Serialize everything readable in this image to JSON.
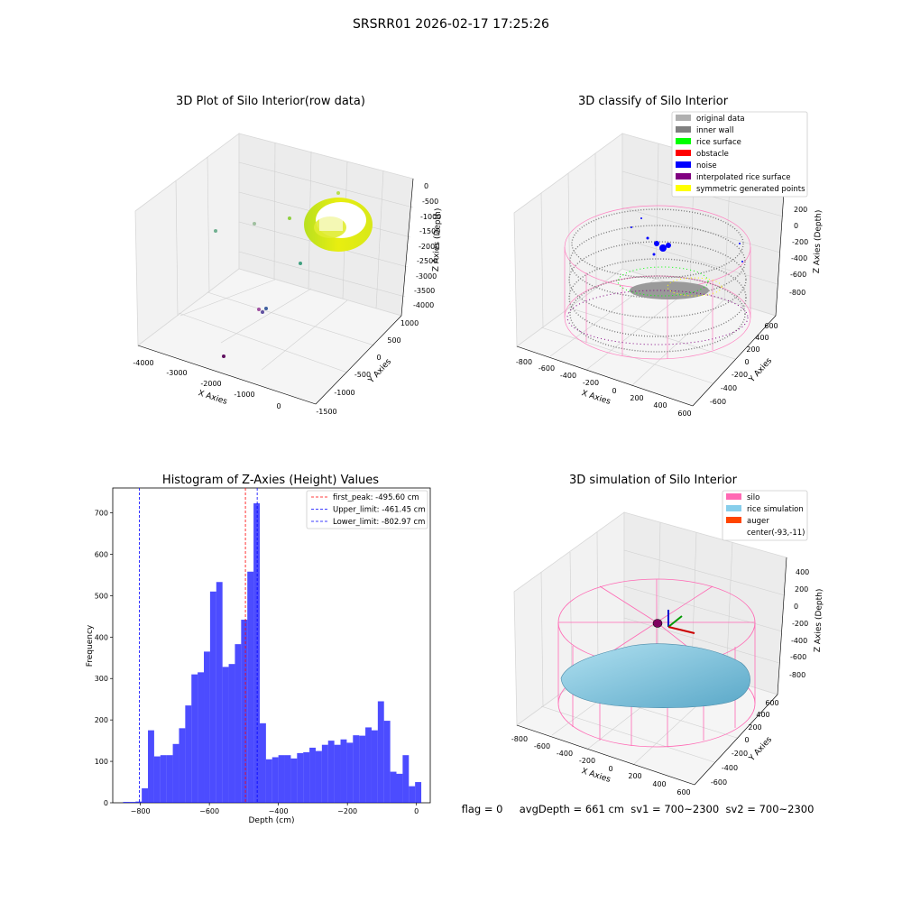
{
  "suptitle": "SRSRR01 2026-02-17 17:25:26",
  "panels": {
    "raw": {
      "title": "3D Plot of Silo Interior(row data)",
      "xlabel": "X Axies",
      "ylabel": "Y Axies",
      "zlabel": "Z Axies (Depth)",
      "xticks": [
        "-4000",
        "-3000",
        "-2000",
        "-1000",
        "0"
      ],
      "yticks": [
        "-1500",
        "-1000",
        "-500",
        "0",
        "500",
        "1000"
      ],
      "zticks": [
        "0",
        "-500",
        "-1000",
        "-1500",
        "-2000",
        "-2500",
        "-3000",
        "-3500",
        "-4000"
      ]
    },
    "classify": {
      "title": "3D classify of Silo Interior",
      "xlabel": "X Axies",
      "ylabel": "Y Axies",
      "zlabel": "Z Axies (Depth)",
      "xticks": [
        "-800",
        "-600",
        "-400",
        "-200",
        "0",
        "200",
        "400",
        "600"
      ],
      "yticks": [
        "-600",
        "-400",
        "-200",
        "0",
        "200",
        "400",
        "600"
      ],
      "zticks": [
        "200",
        "0",
        "-200",
        "-400",
        "-600",
        "-800"
      ],
      "legend": [
        {
          "label": "original data",
          "color": "#b0b0b0"
        },
        {
          "label": "inner wall",
          "color": "#808080"
        },
        {
          "label": "rice surface",
          "color": "#00ff00"
        },
        {
          "label": "obstacle",
          "color": "#ff0000"
        },
        {
          "label": "noise",
          "color": "#0000ff"
        },
        {
          "label": "interpolated rice surface",
          "color": "#800080"
        },
        {
          "label": "symmetric generated points",
          "color": "#ffff00"
        }
      ]
    },
    "sim": {
      "title": "3D simulation of Silo Interior",
      "xlabel": "X Axies",
      "ylabel": "Y Axies",
      "zlabel": "Z Axies (Depth)",
      "xticks": [
        "-800",
        "-600",
        "-400",
        "-200",
        "0",
        "200",
        "400",
        "600"
      ],
      "yticks": [
        "-600",
        "-400",
        "-200",
        "0",
        "200",
        "400",
        "600"
      ],
      "zticks": [
        "400",
        "200",
        "0",
        "-200",
        "-400",
        "-600",
        "-800"
      ],
      "legend": [
        {
          "label": "silo",
          "color": "#ff69b4"
        },
        {
          "label": "rice simulation",
          "color": "#87ceeb"
        },
        {
          "label": "auger",
          "color": "#ff4500"
        },
        {
          "label": "center(-93,-11)",
          "color": ""
        }
      ]
    }
  },
  "status_text": "flag = 0     avgDepth = 661 cm  sv1 = 700~2300  sv2 = 700~2300",
  "chart_data": [
    {
      "type": "bar",
      "title": "Histogram of Z-Axies (Height) Values",
      "xlabel": "Depth (cm)",
      "ylabel": "Frequency",
      "xlim": [
        -880,
        40
      ],
      "ylim": [
        0,
        760
      ],
      "xticks": [
        -800,
        -600,
        -400,
        -200,
        0
      ],
      "yticks": [
        0,
        100,
        200,
        300,
        400,
        500,
        600,
        700
      ],
      "bar_color": "#0000ff",
      "bin_edges": [
        -850,
        -832,
        -814,
        -796,
        -778,
        -760,
        -742,
        -724,
        -706,
        -688,
        -670,
        -652,
        -634,
        -616,
        -598,
        -580,
        -562,
        -544,
        -526,
        -508,
        -490,
        -472,
        -454,
        -436,
        -418,
        -400,
        -382,
        -364,
        -346,
        -328,
        -310,
        -292,
        -274,
        -256,
        -238,
        -220,
        -202,
        -184,
        -166,
        -148,
        -130,
        -112,
        -94,
        -76,
        -58,
        -40,
        -22,
        -4
      ],
      "values": [
        2,
        2,
        3,
        35,
        175,
        112,
        115,
        115,
        142,
        180,
        235,
        310,
        315,
        365,
        510,
        533,
        328,
        335,
        383,
        442,
        558,
        723,
        192,
        105,
        110,
        115,
        115,
        107,
        120,
        122,
        133,
        125,
        140,
        150,
        140,
        153,
        145,
        163,
        162,
        182,
        175,
        245,
        198,
        75,
        70,
        115,
        40,
        50
      ],
      "vlines": [
        {
          "label": "first_peak: -495.60 cm",
          "x": -495.6,
          "color": "#ff0000",
          "style": "dashed"
        },
        {
          "label": "Upper_limit: -461.45 cm",
          "x": -461.45,
          "color": "#0000ff",
          "style": "dashed"
        },
        {
          "label": "Lower_limit: -802.97 cm",
          "x": -802.97,
          "color": "#0000ff",
          "style": "dashed"
        }
      ],
      "legend_position": "upper right"
    }
  ]
}
